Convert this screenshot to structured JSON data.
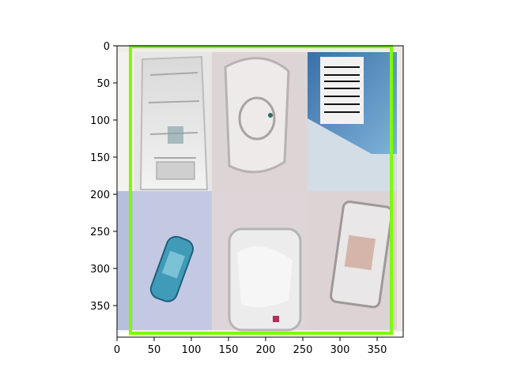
{
  "figure": {
    "x_ticks": [
      "0",
      "50",
      "100",
      "150",
      "200",
      "250",
      "300",
      "350"
    ],
    "y_ticks": [
      "0",
      "50",
      "100",
      "150",
      "200",
      "250",
      "300",
      "350"
    ],
    "bbox_color": "#7cfc00",
    "tiles": [
      {
        "subject": "crumpled plastic bottle",
        "bg": "#e8e8e8"
      },
      {
        "subject": "clear plastic ashtray",
        "bg": "#dcd4d4"
      },
      {
        "subject": "blue white carton with barcode",
        "bg": "#cfdde8"
      },
      {
        "subject": "blue plastic wrapper",
        "bg": "#c3c8e2"
      },
      {
        "subject": "clear plastic container",
        "bg": "#ddd4d6"
      },
      {
        "subject": "plastic tray",
        "bg": "#ddd2d4"
      }
    ]
  }
}
